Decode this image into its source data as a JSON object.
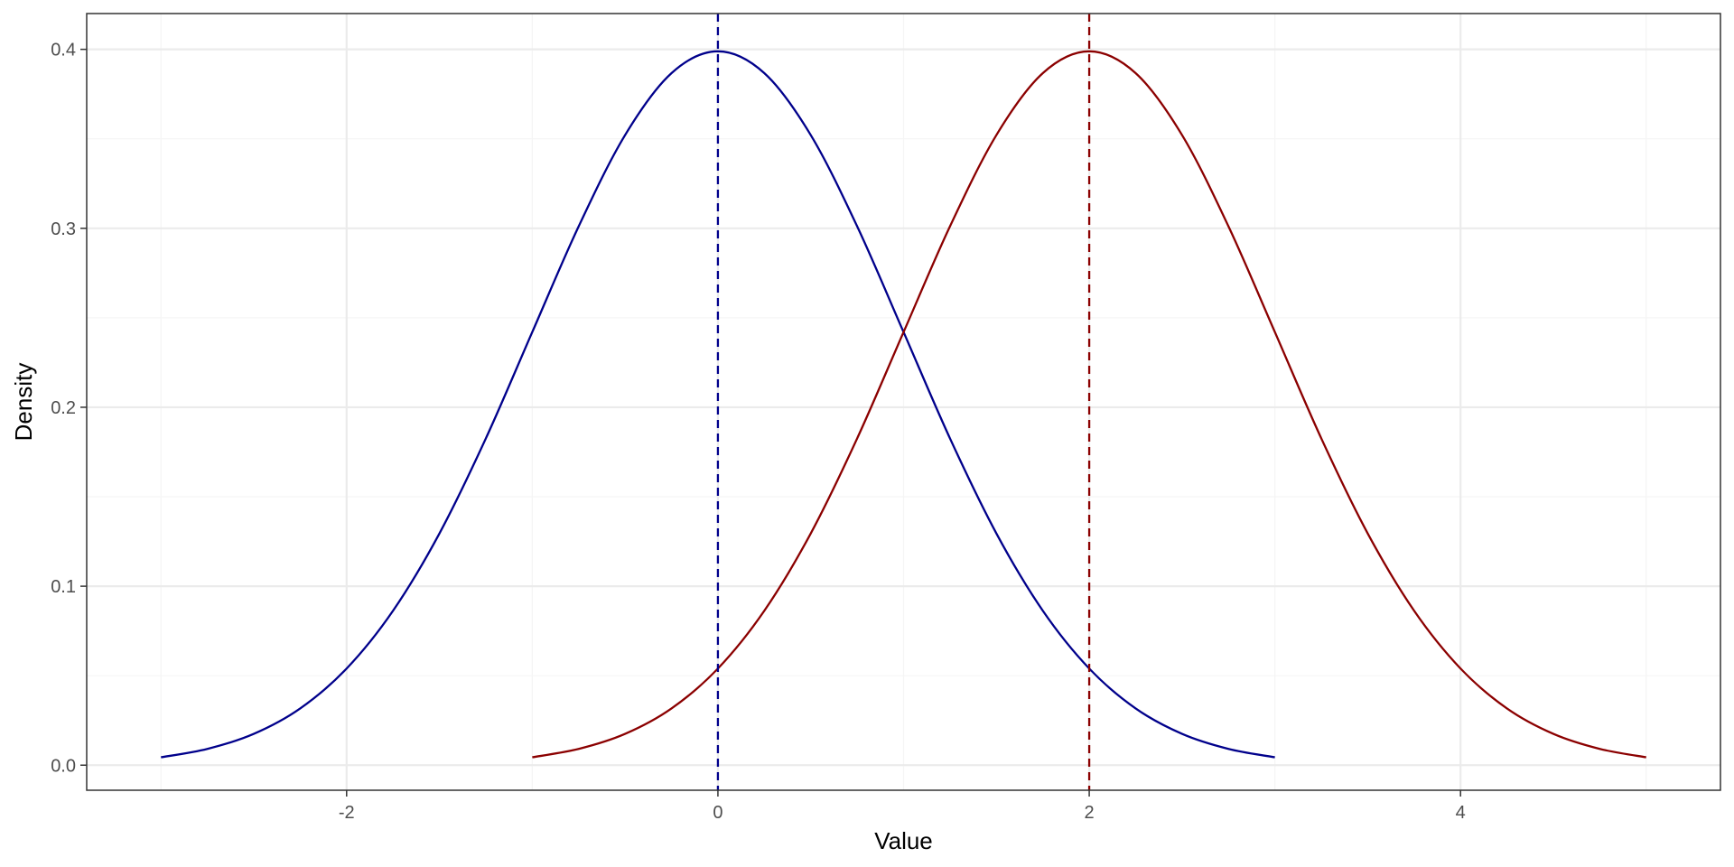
{
  "chart_data": {
    "type": "line",
    "title": "",
    "xlabel": "Value",
    "ylabel": "Density",
    "xlim": [
      -3.4,
      5.4
    ],
    "ylim": [
      -0.014,
      0.42
    ],
    "x_ticks": [
      -2,
      0,
      2,
      4
    ],
    "x_tick_labels": [
      "-2",
      "0",
      "2",
      "4"
    ],
    "x_minor_ticks": [
      -3,
      -1,
      1,
      3,
      5
    ],
    "y_ticks": [
      0.0,
      0.1,
      0.2,
      0.3,
      0.4
    ],
    "y_tick_labels": [
      "0.0",
      "0.1",
      "0.2",
      "0.3",
      "0.4"
    ],
    "y_minor_ticks": [
      0.05,
      0.15,
      0.25,
      0.35
    ],
    "grid": true,
    "legend": "none",
    "series": [
      {
        "color": "#00008B",
        "x": [
          -3.0,
          -2.75,
          -2.5,
          -2.25,
          -2.0,
          -1.75,
          -1.5,
          -1.25,
          -1.0,
          -0.75,
          -0.5,
          -0.25,
          0.0,
          0.25,
          0.5,
          0.75,
          1.0,
          1.25,
          1.5,
          1.75,
          2.0,
          2.25,
          2.5,
          2.75,
          3.0
        ],
        "y": [
          0.0044,
          0.0091,
          0.0175,
          0.0317,
          0.054,
          0.0863,
          0.1295,
          0.1826,
          0.242,
          0.3011,
          0.3521,
          0.3867,
          0.3989,
          0.3867,
          0.3521,
          0.3011,
          0.242,
          0.1826,
          0.1295,
          0.0863,
          0.054,
          0.0317,
          0.0175,
          0.0091,
          0.0044
        ]
      },
      {
        "color": "#8B0000",
        "x": [
          -1.0,
          -0.75,
          -0.5,
          -0.25,
          0.0,
          0.25,
          0.5,
          0.75,
          1.0,
          1.25,
          1.5,
          1.75,
          2.0,
          2.25,
          2.5,
          2.75,
          3.0,
          3.25,
          3.5,
          3.75,
          4.0,
          4.25,
          4.5,
          4.75,
          5.0
        ],
        "y": [
          0.0044,
          0.0091,
          0.0175,
          0.0317,
          0.054,
          0.0863,
          0.1295,
          0.1826,
          0.242,
          0.3011,
          0.3521,
          0.3867,
          0.3989,
          0.3867,
          0.3521,
          0.3011,
          0.242,
          0.1826,
          0.1295,
          0.0863,
          0.054,
          0.0317,
          0.0175,
          0.0091,
          0.0044
        ]
      }
    ],
    "reference_lines": [
      {
        "orientation": "vertical",
        "x": 0,
        "style": "dashed",
        "color": "#00008B"
      },
      {
        "orientation": "vertical",
        "x": 2,
        "style": "dashed",
        "color": "#8B0000"
      }
    ],
    "colors": {
      "panel_border": "#333333",
      "grid_major": "#ebebeb",
      "grid_minor": "#f5f5f5",
      "tick_mark": "#333333",
      "tick_text": "#4d4d4d",
      "axis_title": "#000000"
    }
  }
}
